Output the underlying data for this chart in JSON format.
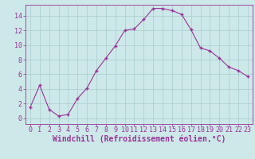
{
  "x": [
    0,
    1,
    2,
    3,
    4,
    5,
    6,
    7,
    8,
    9,
    10,
    11,
    12,
    13,
    14,
    15,
    16,
    17,
    18,
    19,
    20,
    21,
    22,
    23
  ],
  "y": [
    1.5,
    4.5,
    1.2,
    0.3,
    0.5,
    2.7,
    4.1,
    6.5,
    8.2,
    9.9,
    12.0,
    12.2,
    13.5,
    15.0,
    15.0,
    14.7,
    14.2,
    12.1,
    9.6,
    9.2,
    8.2,
    7.0,
    6.5,
    5.7
  ],
  "line_color": "#993399",
  "marker": "+",
  "bg_color": "#cce8e8",
  "grid_color": "#aacccc",
  "xlabel": "Windchill (Refroidissement éolien,°C)",
  "ylabel": "",
  "xlim": [
    -0.5,
    23.5
  ],
  "ylim": [
    -0.8,
    15.5
  ],
  "yticks": [
    0,
    2,
    4,
    6,
    8,
    10,
    12,
    14
  ],
  "xticks": [
    0,
    1,
    2,
    3,
    4,
    5,
    6,
    7,
    8,
    9,
    10,
    11,
    12,
    13,
    14,
    15,
    16,
    17,
    18,
    19,
    20,
    21,
    22,
    23
  ],
  "tick_color": "#993399",
  "label_color": "#993399",
  "tick_fontsize": 6,
  "xlabel_fontsize": 7
}
